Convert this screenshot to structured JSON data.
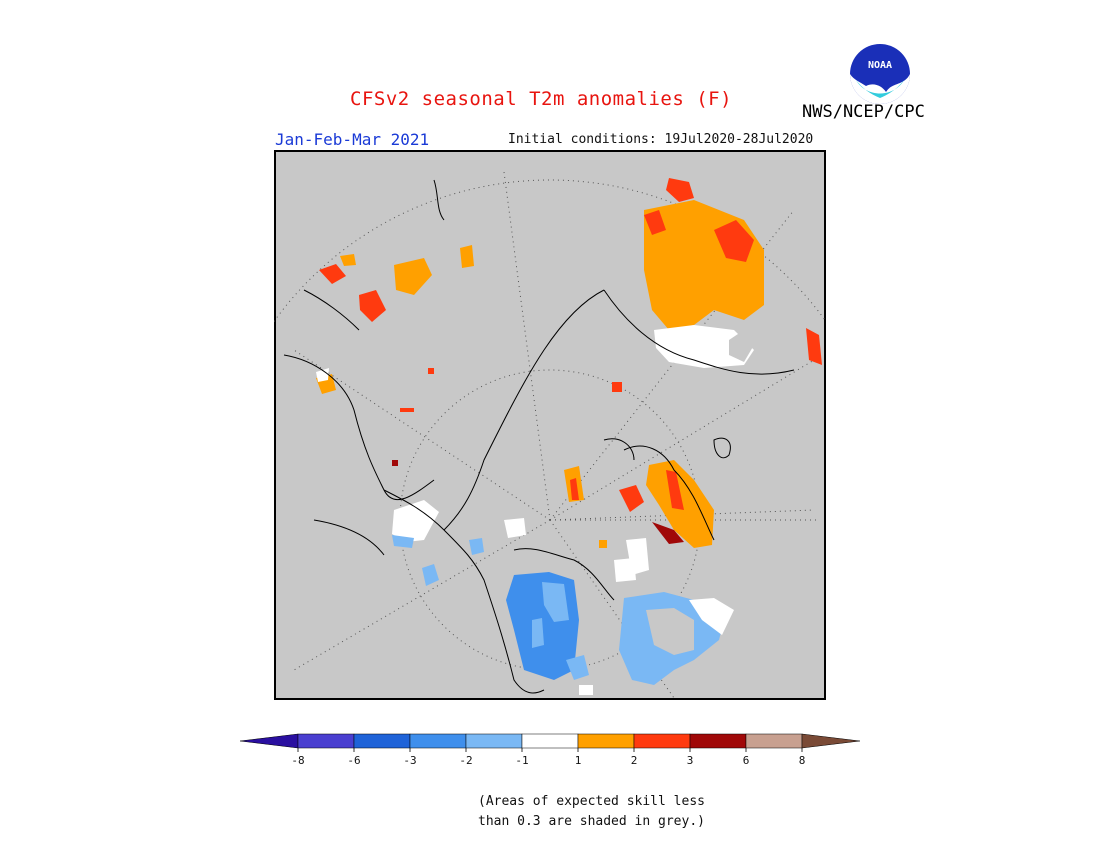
{
  "header": {
    "title": "CFSv2 seasonal T2m anomalies (F)",
    "season": "Jan-Feb-Mar 2021",
    "initial_conditions": "Initial conditions: 19Jul2020-28Jul2020",
    "org": "NWS/NCEP/CPC",
    "logo_text": "NOAA"
  },
  "map": {
    "projection": "north-polar-stereographic",
    "variable": "T2m anomalies",
    "units": "F",
    "skill_mask_color": "#c8c8c8"
  },
  "legend": {
    "ticks": [
      "-8",
      "-6",
      "-3",
      "-2",
      "-1",
      "1",
      "2",
      "3",
      "6",
      "8"
    ],
    "colors": [
      "#2a0fa0",
      "#4a3fd0",
      "#1f63d8",
      "#3f8fec",
      "#7ab8f4",
      "#ffffff",
      "#ffa000",
      "#ff3a0f",
      "#a00808",
      "#c8a090",
      "#7a4a36"
    ]
  },
  "note": {
    "line1": "(Areas of expected skill less",
    "line2": "than 0.3 are shaded in grey.)"
  }
}
